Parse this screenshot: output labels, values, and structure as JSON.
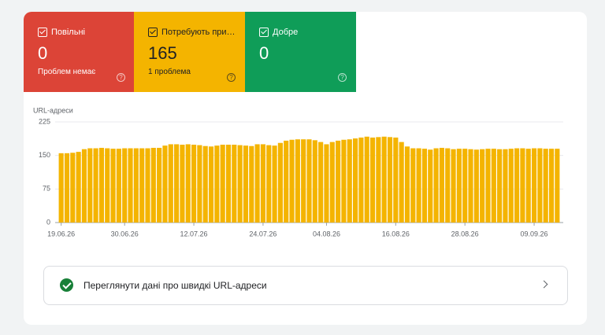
{
  "tiles": [
    {
      "label": "Повільні",
      "value": "0",
      "subtitle": "Проблем немає"
    },
    {
      "label": "Потребують при…",
      "value": "165",
      "subtitle": "1 проблема"
    },
    {
      "label": "Добре",
      "value": "0"
    }
  ],
  "chart_data": {
    "type": "bar",
    "y_label": "URL-адреси",
    "color": "#f4b400",
    "ylim": [
      0,
      225
    ],
    "yticks": [
      0,
      75,
      150,
      225
    ],
    "grid": true,
    "categories": [
      "19.06.26",
      null,
      null,
      null,
      null,
      null,
      null,
      null,
      null,
      null,
      null,
      "30.06.26",
      null,
      null,
      null,
      null,
      null,
      null,
      null,
      null,
      null,
      null,
      null,
      "12.07.26",
      null,
      null,
      null,
      null,
      null,
      null,
      null,
      null,
      null,
      null,
      null,
      "24.07.26",
      null,
      null,
      null,
      null,
      null,
      null,
      null,
      null,
      null,
      null,
      "04.08.26",
      null,
      null,
      null,
      null,
      null,
      null,
      null,
      null,
      null,
      null,
      null,
      "16.08.26",
      null,
      null,
      null,
      null,
      null,
      null,
      null,
      null,
      null,
      null,
      null,
      "28.08.26",
      null,
      null,
      null,
      null,
      null,
      null,
      null,
      null,
      null,
      null,
      null,
      "09.09.26",
      null,
      null,
      null,
      null
    ],
    "values": [
      155,
      155,
      156,
      158,
      164,
      166,
      166,
      167,
      166,
      165,
      165,
      166,
      166,
      166,
      166,
      166,
      167,
      167,
      172,
      175,
      175,
      174,
      175,
      174,
      173,
      171,
      170,
      172,
      174,
      174,
      174,
      173,
      172,
      171,
      175,
      175,
      173,
      172,
      178,
      183,
      185,
      186,
      186,
      186,
      184,
      180,
      175,
      180,
      183,
      185,
      186,
      188,
      190,
      192,
      190,
      191,
      192,
      191,
      190,
      180,
      170,
      166,
      166,
      165,
      163,
      166,
      167,
      166,
      164,
      165,
      165,
      164,
      163,
      164,
      165,
      165,
      164,
      164,
      165,
      166,
      166,
      165,
      166,
      166,
      165,
      165,
      165
    ]
  },
  "link": {
    "text": "Переглянути дані про швидкі URL-адреси"
  }
}
